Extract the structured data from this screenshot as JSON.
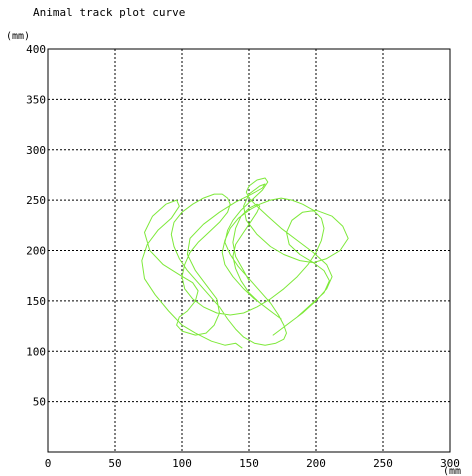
{
  "chart_data": {
    "type": "line",
    "title": "Animal track plot curve",
    "ylabel_unit": "(mm)",
    "xlabel_unit": "(mm",
    "xlim": [
      0,
      300
    ],
    "ylim": [
      0,
      400
    ],
    "x_ticks": [
      0,
      50,
      100,
      150,
      200,
      250,
      300
    ],
    "y_ticks": [
      50,
      100,
      150,
      200,
      250,
      300,
      350,
      400
    ],
    "grid": true,
    "grid_style": "dashed",
    "series": [
      {
        "color": "#7ee93a",
        "x": [
          145,
          140,
          132,
          122,
          110,
          100,
          90,
          80,
          72,
          70,
          74,
          82,
          92,
          98,
          96,
          88,
          78,
          72,
          76,
          86,
          98,
          108,
          112,
          110,
          104,
          98,
          96,
          100,
          110,
          118,
          124,
          128,
          126,
          118,
          110,
          104,
          106,
          116,
          128,
          140,
          152,
          160,
          162,
          158,
          150,
          146,
          148,
          156,
          166,
          176,
          188,
          198,
          208,
          218,
          224,
          220,
          212,
          200,
          190,
          182,
          178,
          180,
          188,
          198,
          206,
          210,
          206,
          196,
          186,
          176,
          170,
          168,
          172,
          180,
          190,
          200,
          208,
          212,
          208,
          198,
          186,
          174,
          164,
          156,
          150,
          148,
          150,
          156,
          162,
          164,
          160,
          152,
          144,
          138,
          134,
          132,
          136,
          142,
          150,
          158,
          166,
          172,
          176,
          178,
          176,
          170,
          162,
          154,
          146,
          140,
          134,
          128,
          120,
          112,
          104,
          98,
          94,
          92,
          94,
          100,
          108,
          116,
          124,
          130,
          134,
          136,
          134,
          128,
          120,
          112,
          106,
          102,
          100,
          102,
          108,
          116,
          126,
          136,
          146,
          156,
          166,
          176,
          186,
          194,
          200,
          204,
          206,
          204,
          198,
          190,
          182,
          174,
          166,
          158,
          150,
          142,
          136,
          132,
          130,
          132,
          138,
          146,
          154,
          162,
          168,
          172,
          174,
          172,
          166,
          158,
          150,
          144,
          140,
          138,
          140,
          146,
          152,
          156,
          158,
          156,
          150,
          144,
          140,
          138,
          140,
          146,
          150
        ],
        "y": [
          103,
          108,
          106,
          110,
          118,
          126,
          140,
          156,
          172,
          190,
          206,
          220,
          232,
          244,
          250,
          246,
          234,
          218,
          200,
          186,
          176,
          168,
          160,
          150,
          140,
          134,
          126,
          120,
          116,
          118,
          126,
          138,
          152,
          166,
          180,
          196,
          212,
          226,
          238,
          248,
          256,
          262,
          266,
          264,
          256,
          244,
          230,
          216,
          204,
          196,
          190,
          188,
          192,
          200,
          212,
          224,
          234,
          240,
          238,
          230,
          218,
          206,
          196,
          188,
          180,
          170,
          158,
          146,
          134,
          124,
          118,
          116,
          120,
          128,
          138,
          150,
          162,
          174,
          186,
          198,
          210,
          222,
          234,
          244,
          252,
          258,
          264,
          270,
          272,
          268,
          260,
          250,
          240,
          230,
          220,
          208,
          196,
          184,
          172,
          160,
          148,
          136,
          126,
          118,
          112,
          108,
          106,
          108,
          114,
          122,
          132,
          144,
          156,
          168,
          180,
          192,
          204,
          216,
          228,
          238,
          246,
          252,
          256,
          256,
          252,
          246,
          238,
          228,
          218,
          208,
          198,
          186,
          174,
          162,
          152,
          144,
          138,
          136,
          138,
          144,
          152,
          162,
          174,
          186,
          198,
          210,
          222,
          232,
          240,
          246,
          250,
          252,
          250,
          246,
          240,
          232,
          222,
          210,
          198,
          186,
          174,
          162,
          152,
          144,
          138,
          134,
          132,
          134,
          140,
          148,
          158,
          170,
          182,
          194,
          206,
          218,
          230,
          238,
          244,
          246,
          242,
          234,
          222,
          208,
          194,
          180,
          170
        ]
      }
    ]
  }
}
